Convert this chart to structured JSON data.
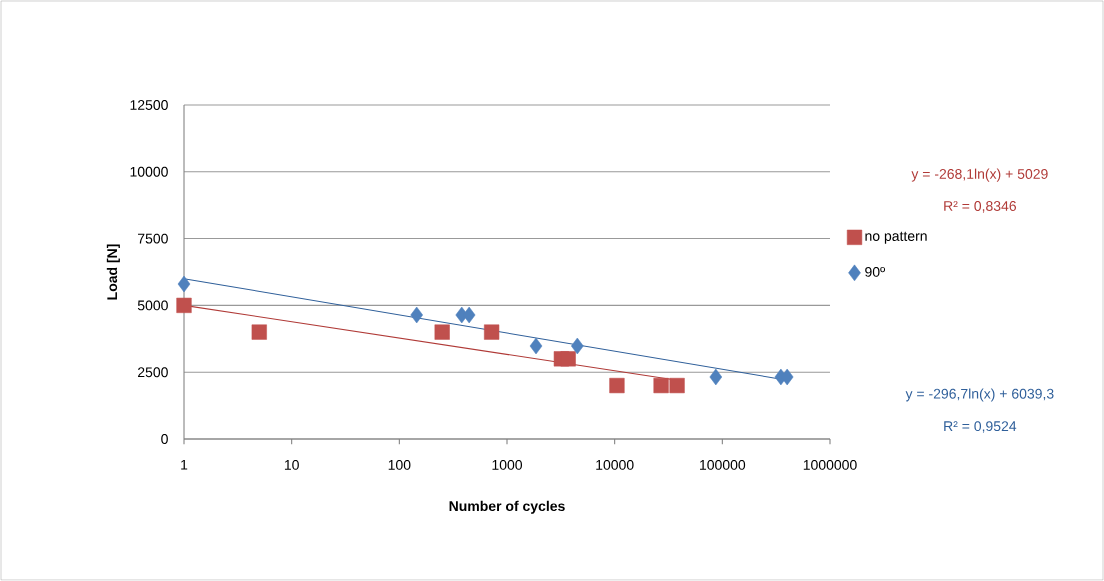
{
  "chart_data": {
    "type": "scatter",
    "xlabel": "Number of cycles",
    "ylabel": "Load [N]",
    "log": "x",
    "grid": "y",
    "legend": "right",
    "xlim": [
      1,
      1000000
    ],
    "xticks": [
      1,
      10,
      100,
      1000,
      10000,
      100000,
      1000000
    ],
    "ylim": [
      0,
      12500
    ],
    "yticks": [
      0,
      2500,
      5000,
      7500,
      10000,
      12500
    ],
    "series": [
      {
        "name": "no pattern",
        "marker": "square",
        "color": "#c0504d",
        "x": [
          1,
          5,
          250,
          720,
          3200,
          3700,
          10500,
          27000,
          38000
        ],
        "values": [
          5000,
          4000,
          4000,
          4000,
          3000,
          3000,
          2000,
          2000,
          2000
        ]
      },
      {
        "name": "90º",
        "marker": "diamond",
        "color": "#4f81bd",
        "x": [
          1,
          145,
          380,
          445,
          1860,
          4500,
          87000,
          350000,
          400000
        ],
        "values": [
          5800,
          4640,
          4640,
          4640,
          3480,
          3480,
          2320,
          2320,
          2320
        ]
      },
      {
        "type": "line",
        "marker": "none",
        "line_style": "solid",
        "color": "#b03a37",
        "x": [
          1,
          38000
        ],
        "values": [
          5000,
          2200
        ]
      },
      {
        "type": "line",
        "marker": "none",
        "line_style": "solid",
        "color": "#2f5f9a",
        "x": [
          1,
          400000
        ],
        "values": [
          6000,
          2200
        ]
      }
    ],
    "annotations": [
      "y = -268,1ln(x) + 5029",
      "R² = 0,8346",
      "y = -296,7ln(x) + 6039,3",
      "R² = 0,9524"
    ]
  }
}
